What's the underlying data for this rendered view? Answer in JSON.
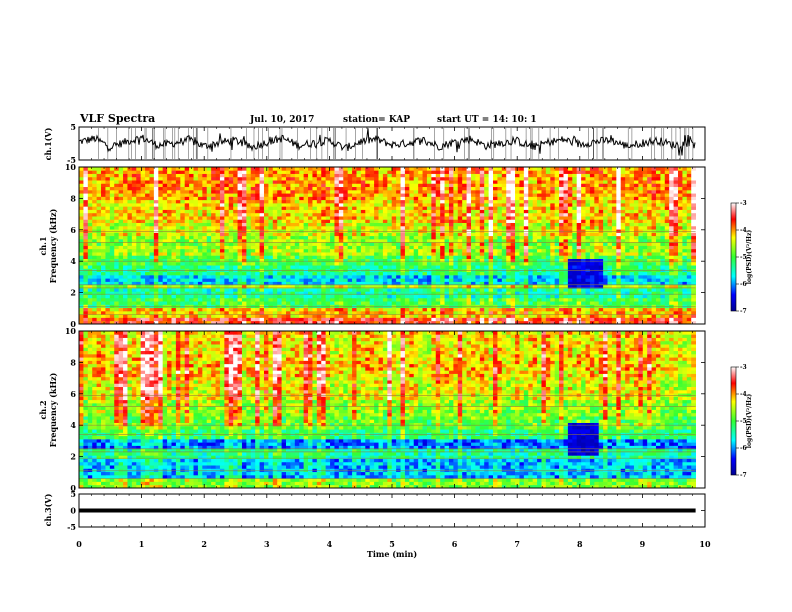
{
  "header": {
    "title": "VLF Spectra",
    "date": "Jul. 10, 2017",
    "station": "station= KAP",
    "start": "start UT = 14: 10: 1"
  },
  "chart_data": [
    {
      "type": "line",
      "panel": "ch1-waveform",
      "ylabel": "ch.1(V)",
      "ylim": [
        -5,
        5
      ],
      "ytick_labels": [
        "5",
        "-5"
      ],
      "xlim": [
        0,
        10
      ],
      "x_data_end": 9.85,
      "x": [
        0.0,
        0.25,
        0.5,
        0.75,
        1.0,
        1.25,
        1.5,
        1.75,
        2.0,
        2.25,
        2.5,
        2.75,
        3.0,
        3.25,
        3.5,
        3.75,
        4.0,
        4.25,
        4.5,
        4.75,
        5.0,
        5.25,
        5.5,
        5.75,
        6.0,
        6.25,
        6.5,
        6.75,
        7.0,
        7.25,
        7.5,
        7.75,
        8.0,
        8.25,
        8.5,
        8.75,
        9.0,
        9.25,
        9.5,
        9.75,
        9.85
      ],
      "values": [
        0.5,
        1.5,
        -1.0,
        0.5,
        1.8,
        -0.5,
        0.0,
        1.2,
        -0.8,
        0.3,
        1.0,
        -1.2,
        0.4,
        1.6,
        -0.6,
        0.2,
        0.9,
        -1.5,
        0.6,
        1.3,
        -0.4,
        0.1,
        1.1,
        -0.9,
        0.5,
        1.4,
        -0.7,
        0.2,
        0.8,
        -1.1,
        0.4,
        1.2,
        -0.3,
        0.6,
        1.0,
        -0.8,
        0.2,
        0.9,
        -0.5,
        0.3,
        0.4
      ],
      "color": "#000000"
    },
    {
      "type": "heatmap",
      "panel": "ch1-spectrogram",
      "ylabel_top": "ch.1",
      "ylabel": "Frequency (kHz)",
      "ylim": [
        0,
        10
      ],
      "ytick_labels": [
        "0",
        "2",
        "4",
        "6",
        "8",
        "10"
      ],
      "xlim": [
        0,
        10
      ],
      "x_data_end": 9.85,
      "colorbar": {
        "label": "log(PSD)(V²/Hz)",
        "range": [
          -7,
          -3
        ],
        "tick_labels": [
          "-3",
          "-4",
          "-5",
          "-6",
          "-7"
        ]
      },
      "bands": [
        {
          "fmin": 0.0,
          "fmax": 0.5,
          "level": -3.6
        },
        {
          "fmin": 0.5,
          "fmax": 1.0,
          "level": -4.2
        },
        {
          "fmin": 1.0,
          "fmax": 1.6,
          "level": -5.1
        },
        {
          "fmin": 1.6,
          "fmax": 2.2,
          "level": -5.4
        },
        {
          "fmin": 2.2,
          "fmax": 2.6,
          "level": -4.6
        },
        {
          "fmin": 2.6,
          "fmax": 3.2,
          "level": -5.8
        },
        {
          "fmin": 3.2,
          "fmax": 3.8,
          "level": -5.3
        },
        {
          "fmin": 3.8,
          "fmax": 4.4,
          "level": -5.0
        },
        {
          "fmin": 4.4,
          "fmax": 5.0,
          "level": -4.6
        },
        {
          "fmin": 5.0,
          "fmax": 5.6,
          "level": -4.7
        },
        {
          "fmin": 5.6,
          "fmax": 6.5,
          "level": -4.4
        },
        {
          "fmin": 6.5,
          "fmax": 8.0,
          "level": -4.2
        },
        {
          "fmin": 8.0,
          "fmax": 10.0,
          "level": -4.0
        }
      ],
      "feature": {
        "xmin": 7.8,
        "xmax": 8.35,
        "fmin": 2.3,
        "fmax": 4.2,
        "level": -6.5
      }
    },
    {
      "type": "heatmap",
      "panel": "ch2-spectrogram",
      "ylabel_top": "ch.2",
      "ylabel": "Frequency (kHz)",
      "ylim": [
        0,
        10
      ],
      "ytick_labels": [
        "0",
        "2",
        "4",
        "6",
        "8",
        "10"
      ],
      "xlim": [
        0,
        10
      ],
      "x_data_end": 9.85,
      "colorbar": {
        "label": "log(PSD)(V²/Hz)",
        "range": [
          -7,
          -3
        ],
        "tick_labels": [
          "-3",
          "-4",
          "-5",
          "-6",
          "-7"
        ]
      },
      "bands": [
        {
          "fmin": 0.0,
          "fmax": 0.6,
          "level": -4.8
        },
        {
          "fmin": 0.6,
          "fmax": 1.8,
          "level": -5.9
        },
        {
          "fmin": 1.8,
          "fmax": 2.4,
          "level": -5.4
        },
        {
          "fmin": 2.4,
          "fmax": 3.2,
          "level": -6.1
        },
        {
          "fmin": 3.2,
          "fmax": 3.8,
          "level": -5.2
        },
        {
          "fmin": 3.8,
          "fmax": 4.6,
          "level": -4.9
        },
        {
          "fmin": 4.6,
          "fmax": 5.6,
          "level": -4.7
        },
        {
          "fmin": 5.6,
          "fmax": 7.0,
          "level": -4.4
        },
        {
          "fmin": 7.0,
          "fmax": 8.5,
          "level": -4.2
        },
        {
          "fmin": 8.5,
          "fmax": 10.0,
          "level": -4.3
        }
      ],
      "feature": {
        "xmin": 7.8,
        "xmax": 8.3,
        "fmin": 2.0,
        "fmax": 4.2,
        "level": -6.6
      }
    },
    {
      "type": "line",
      "panel": "ch3-waveform",
      "ylabel": "ch.3(V)",
      "ylim": [
        -5,
        5
      ],
      "ytick_labels": [
        "5",
        "0",
        "-5"
      ],
      "xlim": [
        0,
        10
      ],
      "x_data_end": 9.85,
      "x": [
        0.0,
        9.85
      ],
      "values": [
        0.0,
        0.0
      ],
      "color": "#000000"
    }
  ],
  "xaxis": {
    "label": "Time (min)",
    "tick_labels": [
      "0",
      "1",
      "2",
      "3",
      "4",
      "5",
      "6",
      "7",
      "8",
      "9",
      "10"
    ]
  }
}
